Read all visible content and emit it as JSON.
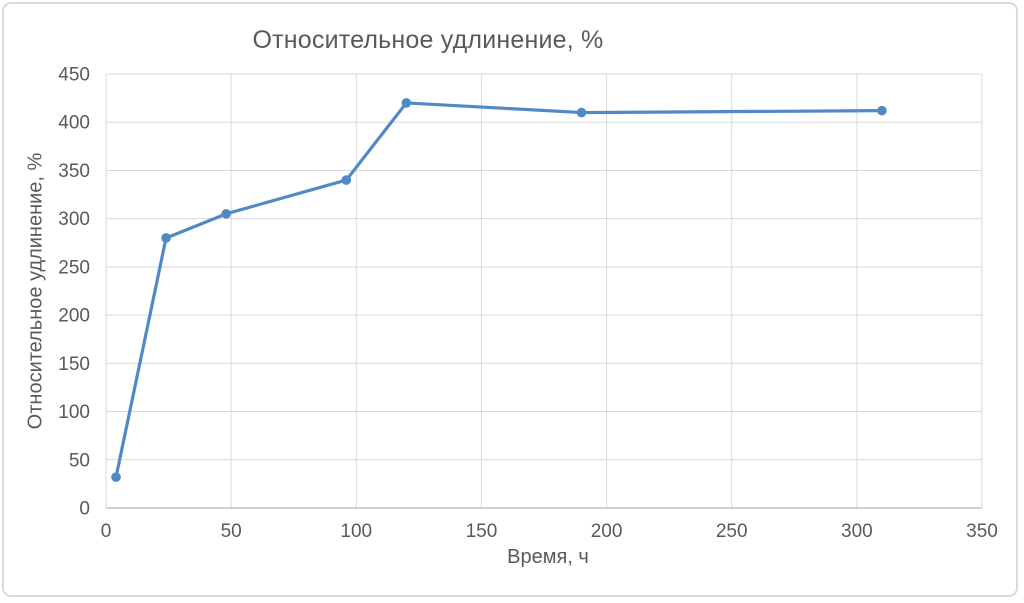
{
  "chart_data": {
    "type": "line",
    "title": "Относительное удлинение, %",
    "xlabel": "Время, ч",
    "ylabel": "Относительное удлинение, %",
    "x": [
      4,
      24,
      48,
      96,
      120,
      190,
      310
    ],
    "y": [
      32,
      280,
      305,
      340,
      420,
      410,
      412
    ],
    "xlim": [
      0,
      350
    ],
    "ylim": [
      0,
      450
    ],
    "xticks": [
      0,
      50,
      100,
      150,
      200,
      250,
      300,
      350
    ],
    "yticks": [
      0,
      50,
      100,
      150,
      200,
      250,
      300,
      350,
      400,
      450
    ],
    "grid": true,
    "legend": "none",
    "marker": "circle",
    "colors": {
      "line": "#5189c5",
      "text": "#595959",
      "grid": "#d9d9d9",
      "axis": "#bfbfbf"
    }
  }
}
